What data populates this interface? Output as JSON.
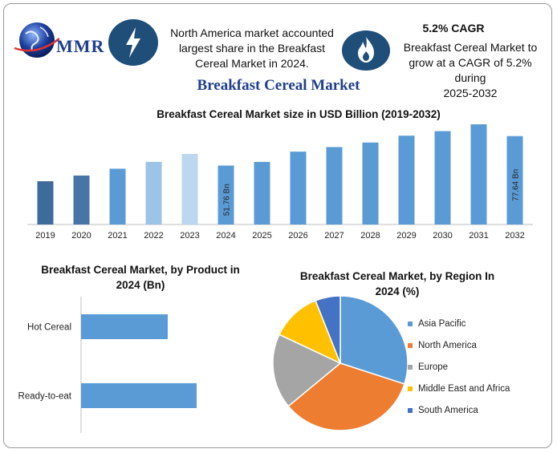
{
  "header": {
    "logo_text": "MMR",
    "info1": [
      "North America market accounted",
      "largest share in the Breakfast",
      "Cereal Market in 2024."
    ],
    "cagr_title": "5.2% CAGR",
    "info2": [
      "Breakfast Cereal Market to",
      "grow at a CAGR of 5.2% during",
      "2025-2032"
    ],
    "icons": [
      "lightning-icon",
      "flame-icon",
      "globe-icon"
    ]
  },
  "main_title": "Breakfast Cereal Market",
  "chart_data": [
    {
      "type": "bar",
      "title": "Breakfast Cereal Market size in USD Billion (2019-2032)",
      "categories": [
        "2019",
        "2020",
        "2021",
        "2022",
        "2023",
        "2024",
        "2025",
        "2026",
        "2027",
        "2028",
        "2029",
        "2030",
        "2031",
        "2032"
      ],
      "values": [
        38,
        43,
        49,
        55,
        62,
        51.76,
        55,
        64,
        68,
        72,
        78,
        82,
        88,
        77.64
      ],
      "data_labels": {
        "5": "51.76 Bn",
        "13": "77.64 Bn"
      },
      "colors": [
        "#3d6b9a",
        "#4675a6",
        "#5b9bd5",
        "#9dc3e6",
        "#bdd7ee",
        "#5b9bd5",
        "#5b9bd5",
        "#5b9bd5",
        "#5b9bd5",
        "#5b9bd5",
        "#5b9bd5",
        "#5b9bd5",
        "#5b9bd5",
        "#5b9bd5"
      ],
      "ylim": [
        0,
        100
      ]
    },
    {
      "type": "bar",
      "orientation": "horizontal",
      "title_lines": [
        "Breakfast Cereal Market, by Product in",
        "2024 (Bn)"
      ],
      "categories": [
        "Hot Cereal",
        "Ready-to-eat"
      ],
      "values": [
        30,
        40
      ],
      "color": "#5b9bd5",
      "xlim": [
        0,
        60
      ]
    },
    {
      "type": "pie",
      "title_lines": [
        "Breakfast Cereal Market, by Region In",
        "2024 (%)"
      ],
      "labels": [
        "Asia Pacific",
        "North America",
        "Europe",
        "Middle East and Africa",
        "South America"
      ],
      "values": [
        30,
        34,
        18,
        12,
        6
      ],
      "colors": [
        "#5b9bd5",
        "#ed7d31",
        "#a5a5a5",
        "#ffc000",
        "#4472c4"
      ],
      "legend_position": "right"
    }
  ]
}
